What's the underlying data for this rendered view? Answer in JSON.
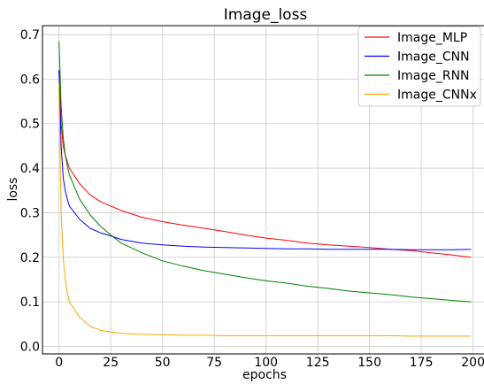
{
  "chart_data": {
    "type": "line",
    "title": "Image_loss",
    "xlabel": "epochs",
    "ylabel": "loss",
    "xlim": [
      -8,
      207
    ],
    "ylim": [
      -0.017,
      0.72
    ],
    "x_ticks": [
      0,
      25,
      50,
      75,
      100,
      125,
      150,
      175,
      200
    ],
    "y_ticks": [
      0.0,
      0.1,
      0.2,
      0.3,
      0.4,
      0.5,
      0.6,
      0.7
    ],
    "x_tick_labels": [
      "0",
      "25",
      "50",
      "75",
      "100",
      "125",
      "150",
      "175",
      "200"
    ],
    "y_tick_labels": [
      "0.0",
      "0.1",
      "0.2",
      "0.3",
      "0.4",
      "0.5",
      "0.6",
      "0.7"
    ],
    "grid": true,
    "legend_position": "top-right",
    "x": [
      0,
      1,
      2,
      3,
      4,
      5,
      10,
      15,
      20,
      25,
      30,
      40,
      50,
      60,
      70,
      80,
      90,
      100,
      110,
      120,
      130,
      140,
      150,
      160,
      170,
      180,
      190,
      199
    ],
    "series": [
      {
        "name": "Image_MLP",
        "color": "#ff0000",
        "values": [
          0.62,
          0.5,
          0.45,
          0.43,
          0.415,
          0.4,
          0.365,
          0.34,
          0.325,
          0.315,
          0.305,
          0.29,
          0.28,
          0.272,
          0.265,
          0.258,
          0.25,
          0.243,
          0.238,
          0.232,
          0.228,
          0.225,
          0.222,
          0.218,
          0.215,
          0.21,
          0.205,
          0.2
        ]
      },
      {
        "name": "Image_CNN",
        "color": "#0000ff",
        "values": [
          0.62,
          0.45,
          0.38,
          0.35,
          0.33,
          0.315,
          0.285,
          0.265,
          0.255,
          0.248,
          0.24,
          0.232,
          0.228,
          0.225,
          0.223,
          0.222,
          0.221,
          0.22,
          0.219,
          0.219,
          0.218,
          0.218,
          0.218,
          0.218,
          0.217,
          0.217,
          0.217,
          0.218
        ]
      },
      {
        "name": "Image_RNN",
        "color": "#008000",
        "values": [
          0.685,
          0.54,
          0.47,
          0.43,
          0.405,
          0.385,
          0.33,
          0.295,
          0.27,
          0.25,
          0.232,
          0.21,
          0.192,
          0.18,
          0.17,
          0.162,
          0.154,
          0.147,
          0.142,
          0.135,
          0.13,
          0.124,
          0.12,
          0.116,
          0.111,
          0.107,
          0.103,
          0.1
        ]
      },
      {
        "name": "Image_CNNx",
        "color": "#ffa500",
        "values": [
          0.59,
          0.3,
          0.2,
          0.15,
          0.12,
          0.1,
          0.065,
          0.045,
          0.036,
          0.032,
          0.029,
          0.027,
          0.026,
          0.025,
          0.025,
          0.024,
          0.024,
          0.024,
          0.024,
          0.024,
          0.024,
          0.024,
          0.024,
          0.024,
          0.023,
          0.023,
          0.023,
          0.023
        ]
      }
    ]
  }
}
